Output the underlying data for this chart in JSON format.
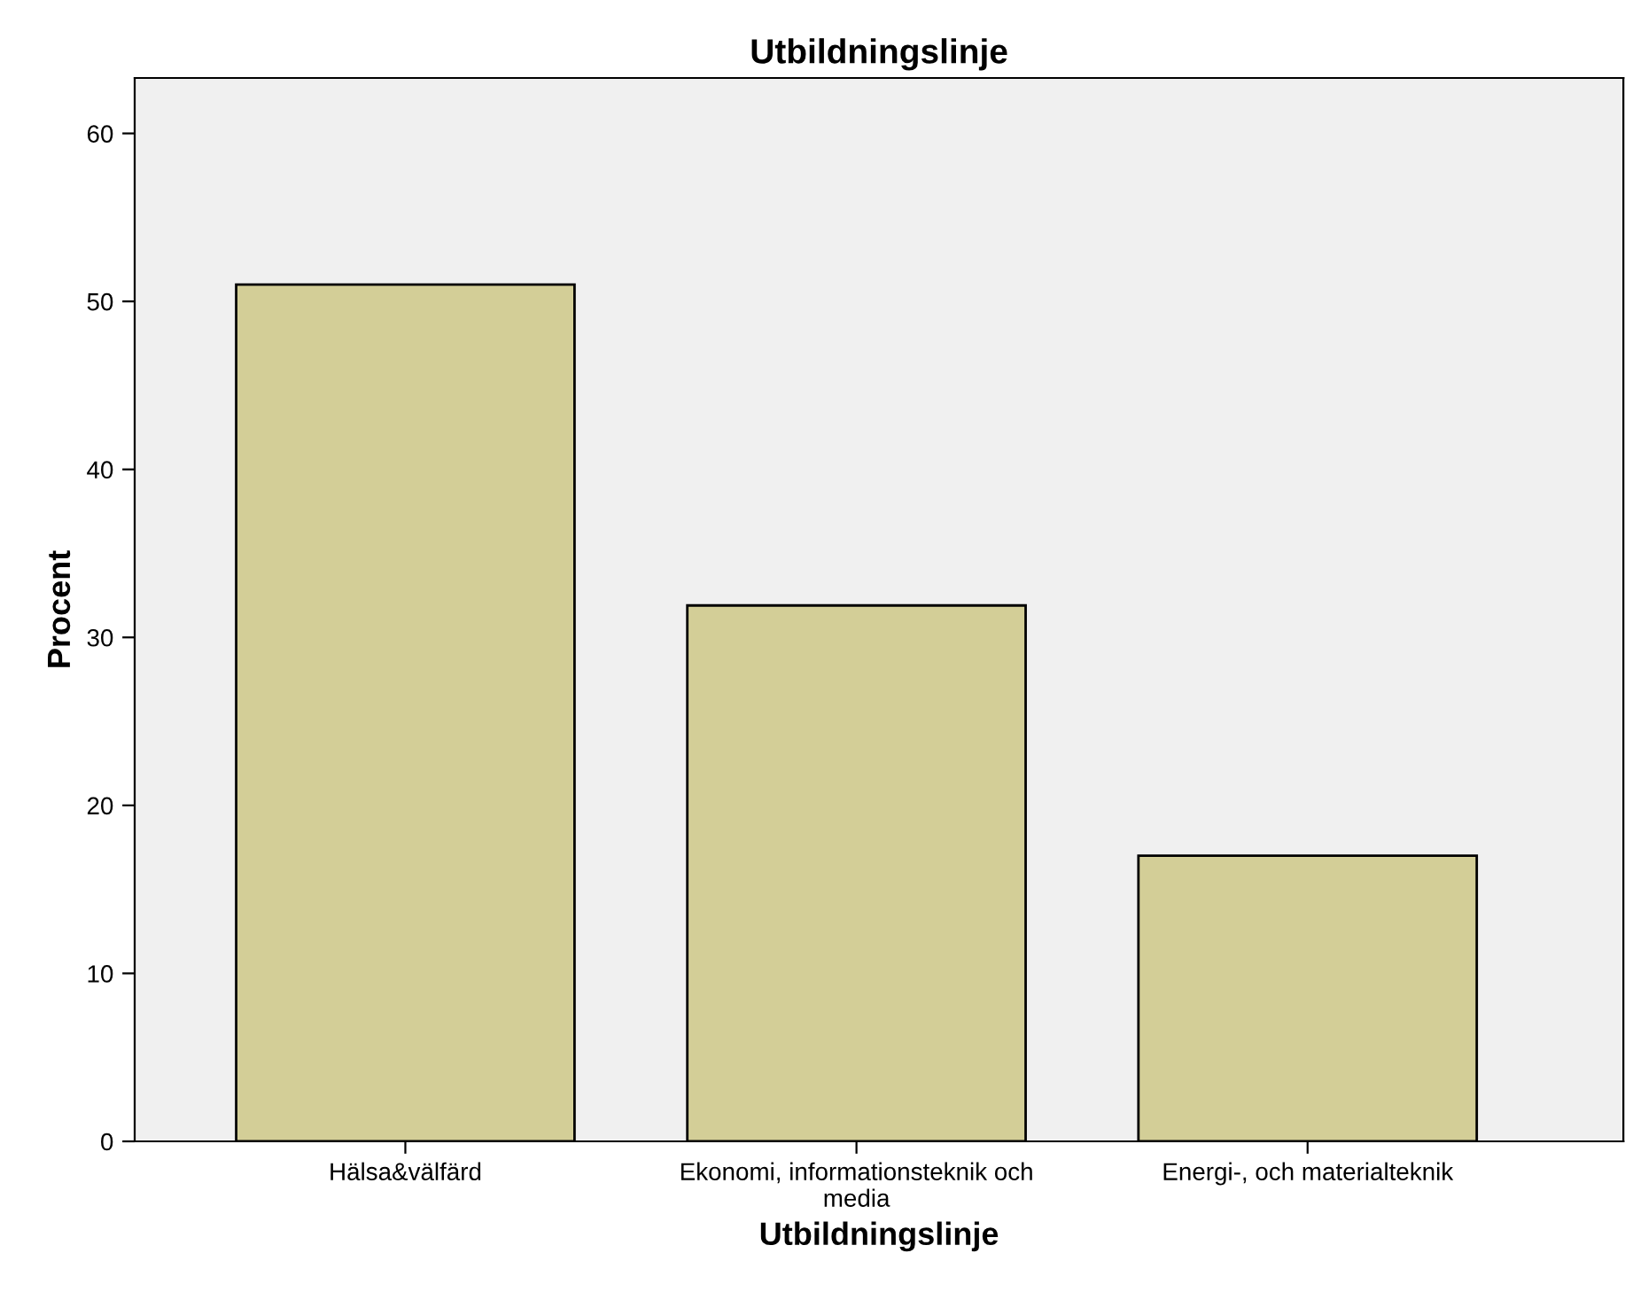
{
  "chart_data": {
    "type": "bar",
    "title": "Utbildningslinje",
    "xlabel": "Utbildningslinje",
    "ylabel": "Procent",
    "categories": [
      "Hälsa&välfärd",
      "Ekonomi, informationsteknik och\nmedia",
      "Energi-, och materialteknik"
    ],
    "values": [
      51.0,
      31.9,
      17.0
    ],
    "color": "#d3ce97",
    "ylim": [
      0,
      63.3
    ],
    "yticks": [
      0,
      10,
      20,
      30,
      40,
      50,
      60
    ],
    "grid": false
  }
}
